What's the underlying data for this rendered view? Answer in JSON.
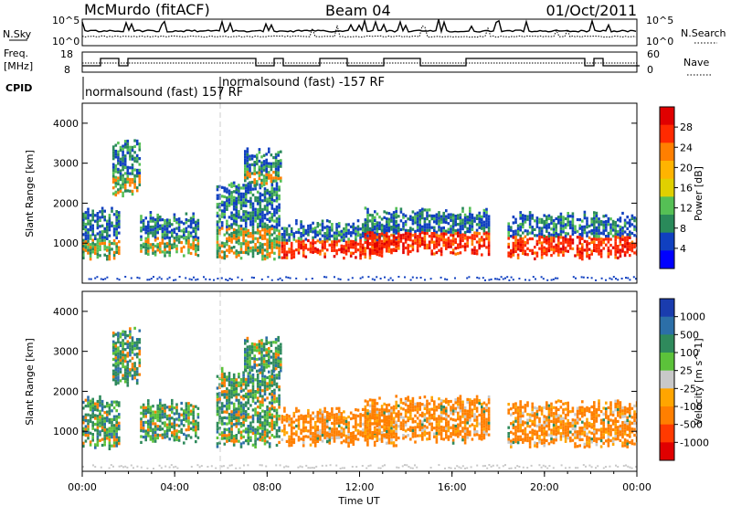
{
  "header": {
    "station": "McMurdo (fitACF)",
    "beam": "Beam 04",
    "date": "01/Oct/2011"
  },
  "noise_panel": {
    "left_label": "N.Sky",
    "right_label": "N.Search",
    "left_ticks": [
      "10^5",
      "10^0"
    ],
    "right_ticks": [
      "10^5",
      "10^0"
    ]
  },
  "freq_panel": {
    "left_label_1": "Freq.",
    "left_label_2": "[MHz]",
    "right_label": "Nave",
    "left_ticks": [
      "18",
      "8"
    ],
    "right_ticks": [
      "60",
      "0"
    ]
  },
  "cpid_panel": {
    "label": "CPID",
    "modes": [
      {
        "text": "normalsound (fast) 157 RF",
        "start_hour": 0
      },
      {
        "text": "normalsound (fast) -157 RF",
        "start_hour": 6
      }
    ]
  },
  "x_axis": {
    "label": "Time UT",
    "tick_labels": [
      "00:00",
      "04:00",
      "08:00",
      "12:00",
      "16:00",
      "20:00",
      "00:00"
    ]
  },
  "power_panel": {
    "ylabel": "Slant Range [km]",
    "y_ticks": [
      "4000",
      "3000",
      "2000",
      "1000"
    ],
    "colorbar_label": "Power [dB]",
    "colorbar_ticks": [
      "28",
      "24",
      "20",
      "16",
      "12",
      "8",
      "4"
    ],
    "colors": [
      "#e00000",
      "#ff2a00",
      "#ff7f00",
      "#ffb400",
      "#e0d000",
      "#55c055",
      "#2a8a5a",
      "#1040c0",
      "#0000ff"
    ]
  },
  "velocity_panel": {
    "ylabel": "Slant Range [km]",
    "y_ticks": [
      "4000",
      "3000",
      "2000",
      "1000"
    ],
    "colorbar_label": "Velocity [m s^-1]",
    "colorbar_ticks": [
      "1000",
      "500",
      "100",
      "25",
      "-25",
      "-100",
      "-500",
      "-1000"
    ],
    "colors": [
      "#1a3cae",
      "#2c6fa8",
      "#2f8a5c",
      "#5cc23a",
      "#c8c8c8",
      "#ffa500",
      "#ff7f00",
      "#ff3a00",
      "#e00000"
    ]
  },
  "chart_data": {
    "type": "heatmap",
    "x_unit": "hours UT",
    "xlim": [
      0,
      24
    ],
    "ylim_km": [
      0,
      4500
    ],
    "echo_regions": [
      {
        "t0": 0.0,
        "t1": 1.6,
        "r0": 700,
        "r1": 1800
      },
      {
        "t0": 1.3,
        "t1": 2.5,
        "r0": 2200,
        "r1": 3500
      },
      {
        "t0": 2.5,
        "t1": 5.0,
        "r0": 800,
        "r1": 1700
      },
      {
        "t0": 5.8,
        "t1": 8.5,
        "r0": 700,
        "r1": 2500
      },
      {
        "t0": 7.0,
        "t1": 8.6,
        "r0": 2500,
        "r1": 3300
      },
      {
        "t0": 8.6,
        "t1": 13.6,
        "r0": 700,
        "r1": 1500
      },
      {
        "t0": 12.2,
        "t1": 17.6,
        "r0": 800,
        "r1": 1800
      },
      {
        "t0": 18.4,
        "t1": 24.0,
        "r0": 700,
        "r1": 1700
      }
    ]
  }
}
